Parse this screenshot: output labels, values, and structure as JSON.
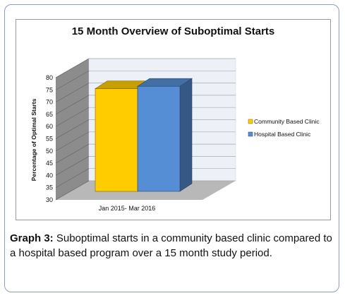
{
  "chart_data": {
    "type": "bar",
    "title": "15 Month Overview of Suboptimal Starts",
    "categories": [
      "Jan 2015- Mar 2016"
    ],
    "series": [
      {
        "name": "Community Based Clinic",
        "values": [
          72
        ],
        "color": "#ffcc00"
      },
      {
        "name": "Hospital Based Clinic",
        "values": [
          73
        ],
        "color": "#558ed5"
      }
    ],
    "xlabel": "",
    "ylabel": "Percentage of Optimal Starts",
    "ylim": [
      30,
      80
    ],
    "yticks": [
      30,
      35,
      40,
      45,
      50,
      55,
      60,
      65,
      70,
      75,
      80
    ],
    "legend": "right",
    "grid": true
  },
  "caption": {
    "label": "Graph 3:",
    "text": " Suboptimal starts in a community based clinic compared to a hospital based program over a 15 month study period."
  }
}
